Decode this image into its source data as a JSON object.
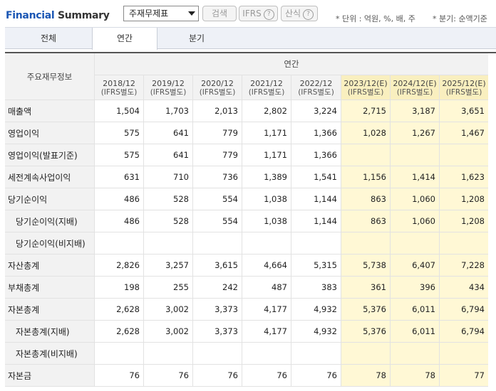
{
  "header": {
    "title_part1": "Financial",
    "title_part2": "Summary",
    "select_value": "주재무제표",
    "search_label": "검색",
    "ifrs_label": "IFRS",
    "formula_label": "산식",
    "unit_note": "* 단위 : 억원, %, 배, 주",
    "period_note": "* 분기: 순액기준"
  },
  "tabs": [
    {
      "label": "전체",
      "active": false
    },
    {
      "label": "연간",
      "active": true
    },
    {
      "label": "분기",
      "active": false
    }
  ],
  "table": {
    "corner_label": "주요재무정보",
    "group_label": "연간",
    "columns": [
      {
        "period": "2018/12",
        "method": "(IFRS별도)",
        "estimate": false
      },
      {
        "period": "2019/12",
        "method": "(IFRS별도)",
        "estimate": false
      },
      {
        "period": "2020/12",
        "method": "(IFRS별도)",
        "estimate": false
      },
      {
        "period": "2021/12",
        "method": "(IFRS별도)",
        "estimate": false
      },
      {
        "period": "2022/12",
        "method": "(IFRS별도)",
        "estimate": false
      },
      {
        "period": "2023/12(E)",
        "method": "(IFRS별도)",
        "estimate": true
      },
      {
        "period": "2024/12(E)",
        "method": "(IFRS별도)",
        "estimate": true
      },
      {
        "period": "2025/12(E)",
        "method": "(IFRS별도)",
        "estimate": true
      }
    ],
    "rows": [
      {
        "label": "매출액",
        "sub": false,
        "values": [
          "1,504",
          "1,703",
          "2,013",
          "2,802",
          "3,224",
          "2,715",
          "3,187",
          "3,651"
        ]
      },
      {
        "label": "영업이익",
        "sub": false,
        "values": [
          "575",
          "641",
          "779",
          "1,171",
          "1,366",
          "1,028",
          "1,267",
          "1,467"
        ]
      },
      {
        "label": "영업이익(발표기준)",
        "sub": false,
        "values": [
          "575",
          "641",
          "779",
          "1,171",
          "1,366",
          "",
          "",
          ""
        ]
      },
      {
        "label": "세전계속사업이익",
        "sub": false,
        "values": [
          "631",
          "710",
          "736",
          "1,389",
          "1,541",
          "1,156",
          "1,414",
          "1,623"
        ]
      },
      {
        "label": "당기순이익",
        "sub": false,
        "values": [
          "486",
          "528",
          "554",
          "1,038",
          "1,144",
          "863",
          "1,060",
          "1,208"
        ]
      },
      {
        "label": "당기순이익(지배)",
        "sub": true,
        "values": [
          "486",
          "528",
          "554",
          "1,038",
          "1,144",
          "863",
          "1,060",
          "1,208"
        ]
      },
      {
        "label": "당기순이익(비지배)",
        "sub": true,
        "values": [
          "",
          "",
          "",
          "",
          "",
          "",
          "",
          ""
        ]
      },
      {
        "label": "자산총계",
        "sub": false,
        "values": [
          "2,826",
          "3,257",
          "3,615",
          "4,664",
          "5,315",
          "5,738",
          "6,407",
          "7,228"
        ]
      },
      {
        "label": "부채총계",
        "sub": false,
        "values": [
          "198",
          "255",
          "242",
          "487",
          "383",
          "361",
          "396",
          "434"
        ]
      },
      {
        "label": "자본총계",
        "sub": false,
        "values": [
          "2,628",
          "3,002",
          "3,373",
          "4,177",
          "4,932",
          "5,376",
          "6,011",
          "6,794"
        ]
      },
      {
        "label": "자본총계(지배)",
        "sub": true,
        "values": [
          "2,628",
          "3,002",
          "3,373",
          "4,177",
          "4,932",
          "5,376",
          "6,011",
          "6,794"
        ]
      },
      {
        "label": "자본총계(비지배)",
        "sub": true,
        "values": [
          "",
          "",
          "",
          "",
          "",
          "",
          "",
          ""
        ]
      },
      {
        "label": "자본금",
        "sub": false,
        "values": [
          "76",
          "76",
          "76",
          "76",
          "76",
          "78",
          "78",
          "77"
        ]
      }
    ]
  },
  "colors": {
    "brand_blue": "#1a56b4",
    "estimate_bg": "#fff8d5",
    "header_bg": "#f2f2f2"
  }
}
